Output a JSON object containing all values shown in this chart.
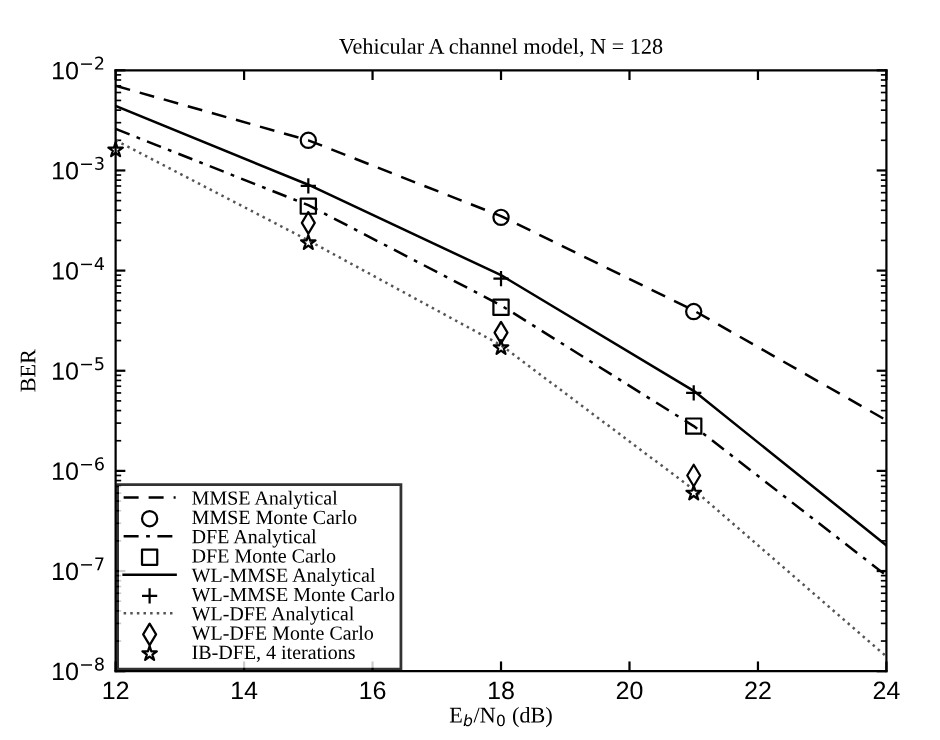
{
  "chart_data": {
    "type": "line",
    "title": "Vehicular A channel model, N = 128",
    "xlabel": "E$_{b}$/N$_{0}$ (dB)",
    "ylabel": "BER",
    "xlim": [
      12,
      24
    ],
    "xticks": [
      12,
      14,
      16,
      18,
      20,
      22,
      24
    ],
    "ylim": [
      1e-08,
      0.01
    ],
    "log": "y",
    "yticks": [
      {
        "value": 1e-08,
        "label": "10$^{−8}$"
      },
      {
        "value": 1e-07,
        "label": "10$^{−7}$"
      },
      {
        "value": 1e-06,
        "label": "10$^{−6}$"
      },
      {
        "value": 1e-05,
        "label": "10$^{−5}$"
      },
      {
        "value": 0.0001,
        "label": "10$^{−4}$"
      },
      {
        "value": 0.001,
        "label": "10$^{−3}$"
      },
      {
        "value": 0.01,
        "label": "10$^{−2}$"
      }
    ],
    "grid": false,
    "legend": "bottom left",
    "series": [
      {
        "name": "MMSE Analytical",
        "line_style": "dashed",
        "color": "#000000",
        "x": [
          12,
          15,
          18,
          21,
          24
        ],
        "values": [
          0.007,
          0.002,
          0.00035,
          4e-05,
          3.2e-06
        ]
      },
      {
        "name": "MMSE Monte Carlo",
        "type": "scatter",
        "marker": "circle",
        "color": "#000000",
        "x": [
          15,
          18,
          21
        ],
        "values": [
          0.002,
          0.00034,
          3.9e-05
        ]
      },
      {
        "name": "DFE Analytical",
        "line_style": "dashdot",
        "color": "#000000",
        "x": [
          12,
          15,
          18,
          21,
          24
        ],
        "values": [
          0.0026,
          0.00045,
          4.5e-05,
          2.8e-06,
          9e-08
        ]
      },
      {
        "name": "DFE Monte Carlo",
        "type": "scatter",
        "marker": "square",
        "color": "#000000",
        "x": [
          15,
          18,
          21
        ],
        "values": [
          0.00044,
          4.3e-05,
          2.8e-06
        ]
      },
      {
        "name": "WL-MMSE Analytical",
        "line_style": "solid",
        "color": "#000000",
        "x": [
          12,
          15,
          18,
          21,
          24
        ],
        "values": [
          0.0044,
          0.00072,
          9e-05,
          6.3e-06,
          1.8e-07
        ]
      },
      {
        "name": "WL-MMSE Monte Carlo",
        "type": "scatter",
        "marker": "plus",
        "color": "#000000",
        "x": [
          15,
          18,
          21
        ],
        "values": [
          0.0007,
          8.3e-05,
          6e-06
        ]
      },
      {
        "name": "WL-DFE Analytical",
        "line_style": "dotted",
        "color": "#555555",
        "x": [
          12,
          15,
          18,
          21,
          24
        ],
        "values": [
          0.002,
          0.0002,
          1.8e-05,
          6.5e-07,
          1.4e-08
        ]
      },
      {
        "name": "WL-DFE Monte Carlo",
        "type": "scatter",
        "marker": "diamond",
        "color": "#000000",
        "x": [
          15,
          18,
          21
        ],
        "values": [
          0.0003,
          2.4e-05,
          9e-07
        ]
      },
      {
        "name": "IB-DFE, 4 iterations",
        "type": "scatter",
        "marker": "star",
        "color": "#000000",
        "x": [
          12,
          15,
          18,
          21
        ],
        "values": [
          0.0016,
          0.00019,
          1.7e-05,
          6e-07
        ]
      }
    ]
  }
}
